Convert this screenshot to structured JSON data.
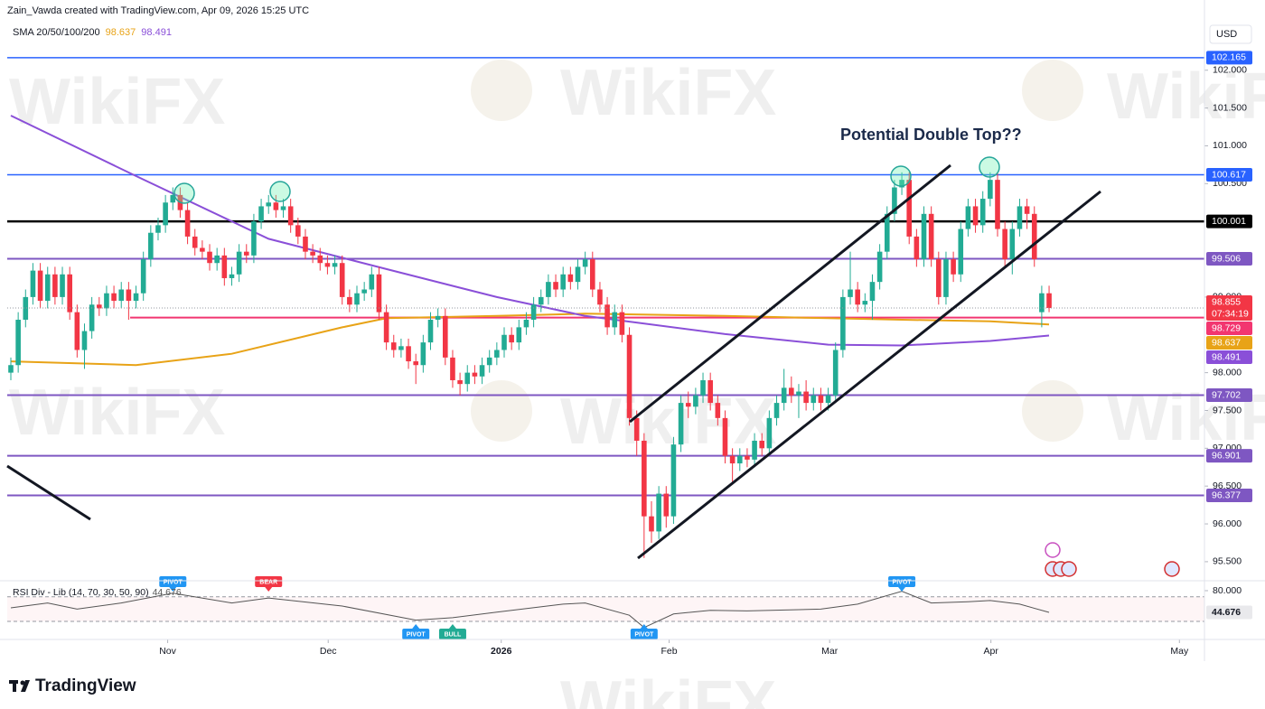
{
  "header": {
    "credit": "Zain_Vawda created with TradingView.com, Apr 09, 2026 15:25 UTC"
  },
  "footer": {
    "brand": "TradingView"
  },
  "watermark": "WikiFX",
  "chart_data": {
    "type": "candlestick",
    "currency": "USD",
    "annotation": "Potential Double Top??",
    "sma_label": "SMA 20/50/100/200",
    "countdown": "07:34:19",
    "up_color": "#22ab94",
    "down_color": "#f23645",
    "grid": false,
    "xlim": [
      -0.49,
      162.1
    ],
    "xticks": [
      {
        "value": 21.3,
        "label": "Nov"
      },
      {
        "value": 43.1,
        "label": "Dec"
      },
      {
        "value": 66.6,
        "label": "2026"
      },
      {
        "value": 89.4,
        "label": "Feb"
      },
      {
        "value": 111.2,
        "label": "Mar"
      },
      {
        "value": 133.1,
        "label": "Apr"
      },
      {
        "value": 158.7,
        "label": "May"
      }
    ],
    "ylim": [
      95.26,
      102.63
    ],
    "yticks": [
      {
        "value": 95.5,
        "label": "95.500"
      },
      {
        "value": 96,
        "label": "96.000"
      },
      {
        "value": 96.5,
        "label": "96.500"
      },
      {
        "value": 97,
        "label": "97.000"
      },
      {
        "value": 97.5,
        "label": "97.500"
      },
      {
        "value": 98,
        "label": "98.000"
      },
      {
        "value": 99,
        "label": "99.000"
      },
      {
        "value": 100.5,
        "label": "100.500"
      },
      {
        "value": 101,
        "label": "101.000"
      },
      {
        "value": 101.5,
        "label": "101.500"
      },
      {
        "value": 102,
        "label": "102.000"
      }
    ],
    "levels": [
      {
        "value": 102.165,
        "color": "#2962ff",
        "width": 1.5
      },
      {
        "value": 100.617,
        "color": "#2962ff",
        "width": 1.5
      },
      {
        "value": 100.001,
        "color": "#000000",
        "width": 2.5
      },
      {
        "value": 99.506,
        "color": "#7e57c2",
        "width": 2
      },
      {
        "value": 98.729,
        "color": "#f23670",
        "width": 2,
        "from": 16.2
      },
      {
        "value": 97.702,
        "color": "#7e57c2",
        "width": 2
      },
      {
        "value": 96.901,
        "color": "#7e57c2",
        "width": 2
      },
      {
        "value": 96.377,
        "color": "#7e57c2",
        "width": 2
      }
    ],
    "sma": [
      {
        "color": "#e8a317",
        "x": [
          0,
          17,
          30,
          45,
          51,
          66,
          78,
          97,
          111,
          121,
          133,
          141
        ],
        "values": [
          98.15,
          98.1,
          98.25,
          98.6,
          98.72,
          98.75,
          98.78,
          98.75,
          98.72,
          98.7,
          98.68,
          98.637
        ]
      },
      {
        "color": "#8a4fd8",
        "x": [
          0,
          17,
          35,
          51,
          66,
          78,
          97,
          111,
          121,
          133,
          141
        ],
        "values": [
          101.4,
          100.6,
          99.77,
          99.37,
          99.0,
          98.75,
          98.51,
          98.37,
          98.36,
          98.42,
          98.491
        ]
      }
    ],
    "candles": [
      [
        98.0,
        98.2,
        97.9,
        98.1
      ],
      [
        98.1,
        98.8,
        98.0,
        98.7
      ],
      [
        98.7,
        99.1,
        98.6,
        99.0
      ],
      [
        99.0,
        99.45,
        98.9,
        99.35
      ],
      [
        99.35,
        99.45,
        98.85,
        98.95
      ],
      [
        98.95,
        99.4,
        98.85,
        99.3
      ],
      [
        99.3,
        99.4,
        98.9,
        99.0
      ],
      [
        99.0,
        99.4,
        98.9,
        99.3
      ],
      [
        99.3,
        99.4,
        98.7,
        98.8
      ],
      [
        98.8,
        98.9,
        98.2,
        98.3
      ],
      [
        98.3,
        98.65,
        98.05,
        98.55
      ],
      [
        98.55,
        99.0,
        98.45,
        98.9
      ],
      [
        98.9,
        99.0,
        98.75,
        98.85
      ],
      [
        98.85,
        99.15,
        98.75,
        99.05
      ],
      [
        99.05,
        99.15,
        98.85,
        98.95
      ],
      [
        98.95,
        99.2,
        98.85,
        99.1
      ],
      [
        99.1,
        99.2,
        98.7,
        98.95
      ],
      [
        98.95,
        99.15,
        98.85,
        99.05
      ],
      [
        99.05,
        99.6,
        98.95,
        99.5
      ],
      [
        99.5,
        99.95,
        99.4,
        99.85
      ],
      [
        99.85,
        100.05,
        99.75,
        99.95
      ],
      [
        99.95,
        100.35,
        99.85,
        100.25
      ],
      [
        100.25,
        100.45,
        100.15,
        100.35
      ],
      [
        100.35,
        100.45,
        100.05,
        100.15
      ],
      [
        100.15,
        100.25,
        99.7,
        99.8
      ],
      [
        99.8,
        99.9,
        99.55,
        99.65
      ],
      [
        99.65,
        99.75,
        99.5,
        99.6
      ],
      [
        99.6,
        99.7,
        99.35,
        99.45
      ],
      [
        99.45,
        99.65,
        99.35,
        99.55
      ],
      [
        99.55,
        99.65,
        99.15,
        99.25
      ],
      [
        99.25,
        99.4,
        99.15,
        99.3
      ],
      [
        99.3,
        99.7,
        99.2,
        99.6
      ],
      [
        99.6,
        99.7,
        99.45,
        99.55
      ],
      [
        99.55,
        100.1,
        99.45,
        100.0
      ],
      [
        100.0,
        100.3,
        99.9,
        100.2
      ],
      [
        100.2,
        100.35,
        100.1,
        100.25
      ],
      [
        100.25,
        100.35,
        100.05,
        100.15
      ],
      [
        100.15,
        100.3,
        100.05,
        100.2
      ],
      [
        100.2,
        100.3,
        99.85,
        99.95
      ],
      [
        99.95,
        100.05,
        99.7,
        99.8
      ],
      [
        99.8,
        99.9,
        99.5,
        99.6
      ],
      [
        99.6,
        99.7,
        99.45,
        99.55
      ],
      [
        99.55,
        99.65,
        99.35,
        99.45
      ],
      [
        99.45,
        99.55,
        99.3,
        99.4
      ],
      [
        99.4,
        99.55,
        99.3,
        99.45
      ],
      [
        99.45,
        99.55,
        98.9,
        99.0
      ],
      [
        99.0,
        99.1,
        98.8,
        98.9
      ],
      [
        98.9,
        99.15,
        98.8,
        99.05
      ],
      [
        99.05,
        99.2,
        98.95,
        99.1
      ],
      [
        99.1,
        99.4,
        99.0,
        99.3
      ],
      [
        99.3,
        99.4,
        98.7,
        98.8
      ],
      [
        98.8,
        98.9,
        98.3,
        98.4
      ],
      [
        98.4,
        98.5,
        98.2,
        98.3
      ],
      [
        98.3,
        98.45,
        98.2,
        98.35
      ],
      [
        98.35,
        98.45,
        98.05,
        98.15
      ],
      [
        98.15,
        98.25,
        97.85,
        98.1
      ],
      [
        98.1,
        98.5,
        98.0,
        98.4
      ],
      [
        98.4,
        98.8,
        98.3,
        98.7
      ],
      [
        98.7,
        98.85,
        98.6,
        98.75
      ],
      [
        98.75,
        98.85,
        98.1,
        98.2
      ],
      [
        98.2,
        98.3,
        97.8,
        97.9
      ],
      [
        97.9,
        98.0,
        97.7,
        97.85
      ],
      [
        97.85,
        98.1,
        97.75,
        98.0
      ],
      [
        98.0,
        98.1,
        97.85,
        97.95
      ],
      [
        97.95,
        98.2,
        97.85,
        98.1
      ],
      [
        98.1,
        98.3,
        98.0,
        98.2
      ],
      [
        98.2,
        98.4,
        98.1,
        98.3
      ],
      [
        98.3,
        98.6,
        98.2,
        98.5
      ],
      [
        98.5,
        98.6,
        98.3,
        98.4
      ],
      [
        98.4,
        98.7,
        98.3,
        98.6
      ],
      [
        98.6,
        98.8,
        98.5,
        98.7
      ],
      [
        98.7,
        99.0,
        98.6,
        98.9
      ],
      [
        98.9,
        99.1,
        98.8,
        99.0
      ],
      [
        99.0,
        99.3,
        98.9,
        99.2
      ],
      [
        99.2,
        99.3,
        99.0,
        99.1
      ],
      [
        99.1,
        99.4,
        99.0,
        99.3
      ],
      [
        99.3,
        99.4,
        99.1,
        99.2
      ],
      [
        99.2,
        99.5,
        99.1,
        99.4
      ],
      [
        99.4,
        99.6,
        99.3,
        99.5
      ],
      [
        99.5,
        99.6,
        99.0,
        99.1
      ],
      [
        99.1,
        99.2,
        98.8,
        98.9
      ],
      [
        98.9,
        99.0,
        98.5,
        98.6
      ],
      [
        98.6,
        98.9,
        98.5,
        98.8
      ],
      [
        98.8,
        98.9,
        98.4,
        98.5
      ],
      [
        98.5,
        98.6,
        97.3,
        97.4
      ],
      [
        97.4,
        97.5,
        96.9,
        97.1
      ],
      [
        97.1,
        97.2,
        95.55,
        96.1
      ],
      [
        96.1,
        96.3,
        95.75,
        95.9
      ],
      [
        95.9,
        96.5,
        95.8,
        96.4
      ],
      [
        96.4,
        96.5,
        95.95,
        96.1
      ],
      [
        96.1,
        97.15,
        96.0,
        97.05
      ],
      [
        97.05,
        97.7,
        96.95,
        97.6
      ],
      [
        97.6,
        97.75,
        97.4,
        97.55
      ],
      [
        97.55,
        97.8,
        97.45,
        97.7
      ],
      [
        97.7,
        98.0,
        97.6,
        97.9
      ],
      [
        97.9,
        98.0,
        97.5,
        97.6
      ],
      [
        97.6,
        97.7,
        97.3,
        97.4
      ],
      [
        97.4,
        97.5,
        96.8,
        96.9
      ],
      [
        96.9,
        97.0,
        96.55,
        96.8
      ],
      [
        96.8,
        97.0,
        96.7,
        96.9
      ],
      [
        96.9,
        97.0,
        96.75,
        96.85
      ],
      [
        96.85,
        97.2,
        96.75,
        97.1
      ],
      [
        97.1,
        97.2,
        96.9,
        97.0
      ],
      [
        97.0,
        97.5,
        96.9,
        97.4
      ],
      [
        97.4,
        97.7,
        97.3,
        97.6
      ],
      [
        97.6,
        98.05,
        97.5,
        97.8
      ],
      [
        97.8,
        97.95,
        97.6,
        97.7
      ],
      [
        97.7,
        97.85,
        97.4,
        97.75
      ],
      [
        97.75,
        97.9,
        97.5,
        97.6
      ],
      [
        97.6,
        97.8,
        97.5,
        97.7
      ],
      [
        97.7,
        97.8,
        97.5,
        97.6
      ],
      [
        97.6,
        97.8,
        97.5,
        97.7
      ],
      [
        97.7,
        98.4,
        97.6,
        98.3
      ],
      [
        98.3,
        99.1,
        98.2,
        99.0
      ],
      [
        99.0,
        99.6,
        98.9,
        99.1
      ],
      [
        99.1,
        99.2,
        98.8,
        98.9
      ],
      [
        98.9,
        99.05,
        98.8,
        98.95
      ],
      [
        98.95,
        99.3,
        98.7,
        99.2
      ],
      [
        99.2,
        99.7,
        99.1,
        99.6
      ],
      [
        99.6,
        100.2,
        99.5,
        100.1
      ],
      [
        100.1,
        100.55,
        100.0,
        100.45
      ],
      [
        100.45,
        100.65,
        100.35,
        100.55
      ],
      [
        100.55,
        100.65,
        99.7,
        99.8
      ],
      [
        99.8,
        99.9,
        99.4,
        99.5
      ],
      [
        99.5,
        100.2,
        99.4,
        100.1
      ],
      [
        100.1,
        100.2,
        99.4,
        99.5
      ],
      [
        99.5,
        99.6,
        98.9,
        99.0
      ],
      [
        99.0,
        99.6,
        98.9,
        99.5
      ],
      [
        99.5,
        99.6,
        99.2,
        99.3
      ],
      [
        99.3,
        100.0,
        99.2,
        99.9
      ],
      [
        99.9,
        100.3,
        99.8,
        100.2
      ],
      [
        100.2,
        100.3,
        99.85,
        99.95
      ],
      [
        99.95,
        100.4,
        99.85,
        100.3
      ],
      [
        100.3,
        100.65,
        100.2,
        100.55
      ],
      [
        100.55,
        100.65,
        99.8,
        99.9
      ],
      [
        99.9,
        100.0,
        99.4,
        99.5
      ],
      [
        99.5,
        100.0,
        99.3,
        99.9
      ],
      [
        99.9,
        100.3,
        99.8,
        100.2
      ],
      [
        100.2,
        100.3,
        99.9,
        100.1
      ],
      [
        100.1,
        100.2,
        99.4,
        99.5
      ],
      [
        98.8,
        99.15,
        98.6,
        99.05
      ],
      [
        99.05,
        99.15,
        98.8,
        98.855
      ]
    ],
    "rsi": {
      "label": "RSI Div - Lib (14, 70, 30, 50, 90)",
      "ylim": [
        5,
        93.2
      ],
      "yticks": [
        {
          "value": 80,
          "label": "80.000"
        }
      ],
      "bands": [
        30,
        70
      ],
      "color": "#555555",
      "x": [
        0,
        5,
        9,
        15,
        22,
        30,
        35,
        45,
        55,
        60,
        66,
        75,
        78,
        84,
        86,
        90,
        95,
        100,
        110,
        115,
        121,
        125,
        130,
        133,
        137,
        141
      ],
      "values": [
        52,
        60,
        50,
        60,
        76,
        60,
        68,
        55,
        32,
        36,
        45,
        58,
        60,
        40,
        20,
        42,
        48,
        47,
        50,
        58,
        79,
        60,
        62,
        64,
        58,
        44.676
      ],
      "signals": [
        {
          "label": "PIVOT",
          "x": 22,
          "position": "above",
          "color": "#2196f3"
        },
        {
          "label": "BEAR",
          "x": 35,
          "position": "above",
          "color": "#f23645"
        },
        {
          "label": "PIVOT",
          "x": 55,
          "position": "below",
          "color": "#2196f3"
        },
        {
          "label": "BULL",
          "x": 60,
          "position": "below",
          "color": "#22ab94"
        },
        {
          "label": "PIVOT",
          "x": 86,
          "position": "below",
          "color": "#2196f3"
        },
        {
          "label": "PIVOT",
          "x": 121,
          "position": "above",
          "color": "#2196f3"
        }
      ]
    }
  }
}
